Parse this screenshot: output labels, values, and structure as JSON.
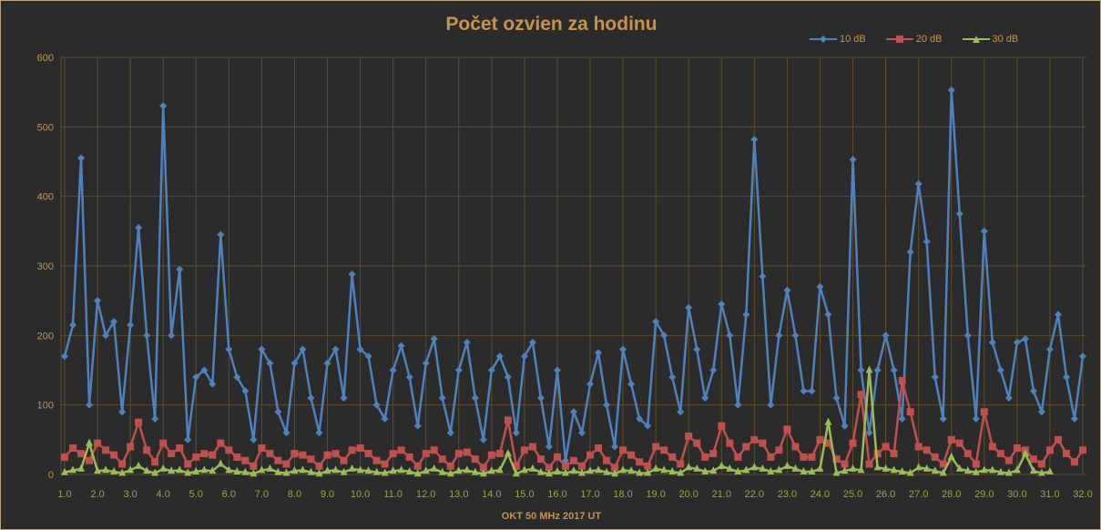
{
  "chart_data": {
    "type": "line",
    "title": "Počet ozvien za hodinu",
    "xlabel": "OKT 50 MHz  2017  UT",
    "ylabel": "",
    "xlim": [
      1.0,
      32.0
    ],
    "ylim": [
      0,
      600
    ],
    "yticks": [
      "0",
      "100",
      "200",
      "300",
      "400",
      "500",
      "600"
    ],
    "xticks": [
      "1.0",
      "2.0",
      "3.0",
      "4.0",
      "5.0",
      "6.0",
      "7.0",
      "8.0",
      "9.0",
      "10.0",
      "11.0",
      "12.0",
      "13.0",
      "14.0",
      "15.0",
      "16.0",
      "17.0",
      "18.0",
      "19.0",
      "20.0",
      "21.0",
      "22.0",
      "23.0",
      "24.0",
      "25.0",
      "26.0",
      "27.0",
      "28.0",
      "29.0",
      "30.0",
      "31.0",
      "32.0"
    ],
    "grid": true,
    "legend_position": "top-right",
    "x_step": 0.25,
    "series": [
      {
        "name": "10 dB",
        "color": "#4f81bd",
        "marker": "diamond",
        "values": [
          170,
          215,
          455,
          100,
          250,
          200,
          220,
          90,
          215,
          355,
          200,
          80,
          530,
          200,
          295,
          50,
          140,
          150,
          130,
          345,
          180,
          140,
          120,
          50,
          180,
          160,
          90,
          60,
          160,
          180,
          110,
          60,
          160,
          180,
          110,
          288,
          180,
          170,
          100,
          80,
          150,
          185,
          140,
          70,
          160,
          195,
          110,
          60,
          150,
          190,
          110,
          50,
          150,
          170,
          140,
          60,
          170,
          190,
          110,
          40,
          150,
          20,
          90,
          60,
          130,
          175,
          100,
          40,
          180,
          130,
          80,
          70,
          220,
          200,
          140,
          90,
          240,
          180,
          110,
          150,
          245,
          200,
          100,
          230,
          482,
          285,
          100,
          200,
          265,
          200,
          120,
          120,
          270,
          230,
          110,
          70,
          453,
          150,
          60,
          150,
          200,
          150,
          80,
          320,
          418,
          335,
          140,
          80,
          553,
          375,
          200,
          80,
          350,
          190,
          150,
          110,
          190,
          195,
          120,
          90,
          180,
          230,
          140,
          80,
          170
        ]
      },
      {
        "name": "20 dB",
        "color": "#c0504d",
        "marker": "square",
        "values": [
          25,
          38,
          30,
          20,
          45,
          35,
          28,
          15,
          40,
          75,
          35,
          18,
          45,
          30,
          38,
          15,
          25,
          30,
          28,
          45,
          35,
          25,
          20,
          12,
          38,
          30,
          20,
          15,
          30,
          28,
          22,
          12,
          28,
          30,
          20,
          35,
          38,
          30,
          20,
          15,
          30,
          35,
          25,
          12,
          30,
          35,
          22,
          12,
          30,
          32,
          22,
          10,
          28,
          30,
          78,
          12,
          35,
          40,
          22,
          10,
          25,
          12,
          20,
          12,
          28,
          38,
          20,
          10,
          35,
          28,
          18,
          12,
          40,
          35,
          25,
          15,
          55,
          45,
          25,
          30,
          70,
          45,
          25,
          40,
          50,
          45,
          25,
          35,
          65,
          40,
          25,
          25,
          50,
          45,
          22,
          15,
          45,
          115,
          15,
          30,
          40,
          30,
          135,
          90,
          40,
          35,
          25,
          15,
          50,
          45,
          30,
          15,
          90,
          40,
          30,
          20,
          38,
          35,
          22,
          15,
          35,
          50,
          30,
          18,
          35
        ]
      },
      {
        "name": "30 dB",
        "color": "#9bbb59",
        "marker": "triangle",
        "values": [
          3,
          6,
          8,
          45,
          5,
          6,
          4,
          2,
          6,
          12,
          5,
          2,
          8,
          5,
          6,
          2,
          4,
          6,
          5,
          15,
          6,
          4,
          3,
          1,
          6,
          8,
          3,
          2,
          5,
          6,
          3,
          1,
          5,
          6,
          3,
          8,
          6,
          5,
          3,
          2,
          5,
          6,
          4,
          1,
          5,
          8,
          3,
          1,
          5,
          6,
          3,
          1,
          5,
          6,
          30,
          1,
          6,
          8,
          3,
          1,
          4,
          2,
          5,
          2,
          5,
          6,
          3,
          1,
          6,
          5,
          2,
          2,
          8,
          6,
          4,
          2,
          10,
          8,
          4,
          5,
          12,
          8,
          4,
          6,
          10,
          8,
          4,
          6,
          12,
          8,
          4,
          4,
          8,
          75,
          2,
          5,
          8,
          6,
          150,
          10,
          8,
          6,
          4,
          2,
          10,
          8,
          5,
          2,
          25,
          8,
          5,
          3,
          6,
          6,
          3,
          2,
          6,
          30,
          5,
          2,
          4
        ]
      }
    ]
  }
}
